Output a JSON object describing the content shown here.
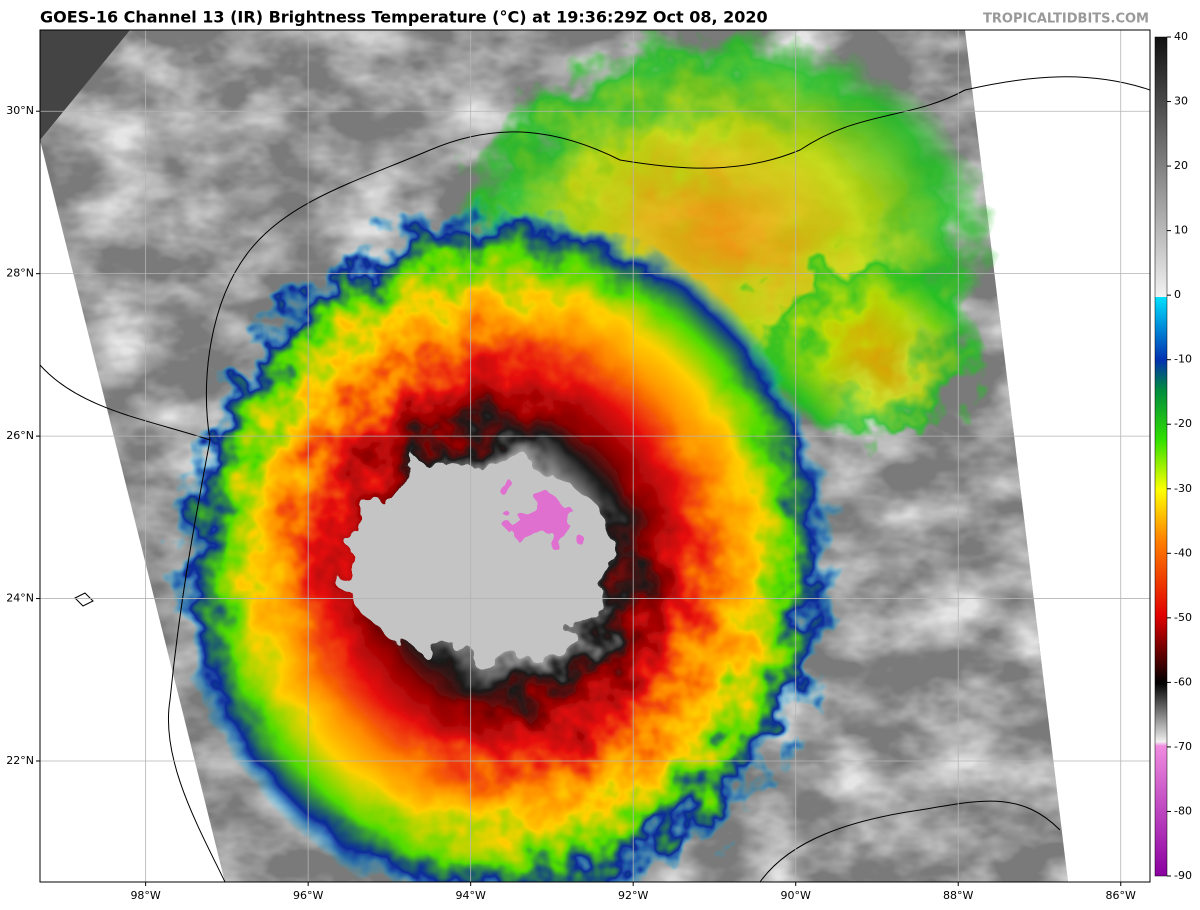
{
  "header": {
    "title": "GOES-16 Channel 13 (IR) Brightness Temperature (°C) at 19:36:29Z Oct 08, 2020",
    "source": "TROPICALTIDBITS.COM"
  },
  "map": {
    "lonlim": [
      -99.3,
      -85.64
    ],
    "latlim": [
      20.51,
      31.0
    ],
    "lon_ticks": [
      {
        "value": -98,
        "label": "98°W"
      },
      {
        "value": -96,
        "label": "96°W"
      },
      {
        "value": -94,
        "label": "94°W"
      },
      {
        "value": -92,
        "label": "92°W"
      },
      {
        "value": -90,
        "label": "90°W"
      },
      {
        "value": -88,
        "label": "88°W"
      },
      {
        "value": -86,
        "label": "86°W"
      }
    ],
    "lat_ticks": [
      {
        "value": 30,
        "label": "30°N"
      },
      {
        "value": 28,
        "label": "28°N"
      },
      {
        "value": 26,
        "label": "26°N"
      },
      {
        "value": 24,
        "label": "24°N"
      },
      {
        "value": 22,
        "label": "22°N"
      }
    ],
    "grid": true
  },
  "colorbar": {
    "range": [
      -90,
      40
    ],
    "ticks": [
      40,
      30,
      20,
      10,
      0,
      -10,
      -20,
      -30,
      -40,
      -50,
      -60,
      -70,
      -80,
      -90
    ]
  }
}
